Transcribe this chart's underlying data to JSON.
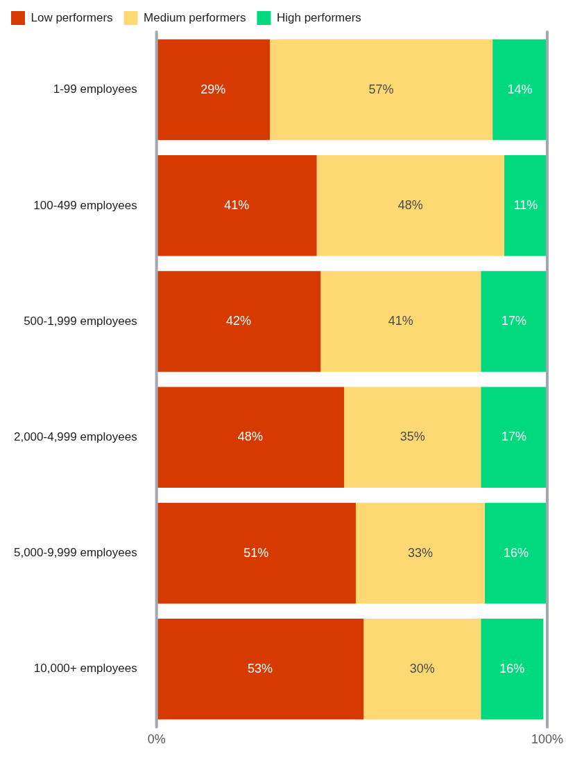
{
  "chart_data": {
    "type": "bar",
    "orientation": "horizontal",
    "stacked": true,
    "categories": [
      "1-99 employees",
      "100-499 employees",
      "500-1,999 employees",
      "2,000-4,999 employees",
      "5,000-9,999 employees",
      "10,000+ employees"
    ],
    "series": [
      {
        "name": "Low performers",
        "color": "#d63a00",
        "values": [
          29,
          41,
          42,
          48,
          51,
          53
        ],
        "value_labels": [
          "29%",
          "41%",
          "42%",
          "48%",
          "51%",
          "53%"
        ]
      },
      {
        "name": "Medium performers",
        "color": "#fdd873",
        "values": [
          57,
          48,
          41,
          35,
          33,
          30
        ],
        "value_labels": [
          "57%",
          "48%",
          "41%",
          "35%",
          "33%",
          "30%"
        ]
      },
      {
        "name": "High performers",
        "color": "#00d97e",
        "values": [
          14,
          11,
          17,
          17,
          16,
          16
        ],
        "value_labels": [
          "14%",
          "11%",
          "17%",
          "17%",
          "16%",
          "16%"
        ]
      }
    ],
    "xlim": [
      0,
      100
    ],
    "xticks": [
      {
        "value": 0,
        "label": "0%"
      },
      {
        "value": 100,
        "label": "100%"
      }
    ],
    "legend": "top left"
  }
}
